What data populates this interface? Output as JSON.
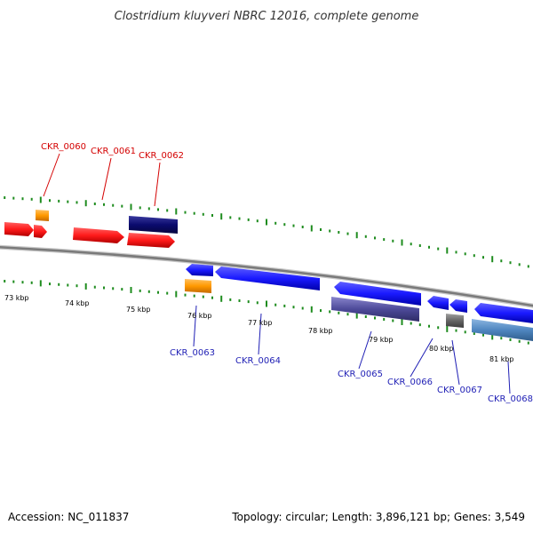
{
  "header": {
    "title": "Clostridium kluyveri NBRC 12016, complete genome"
  },
  "footer": {
    "accession": "Accession: NC_011837",
    "topology": "Topology: circular; Length: 3,896,121 bp; Genes: 3,549"
  },
  "colors": {
    "forward_gene": "#ff1a1a",
    "reverse_gene": "#1a1aff",
    "forward_label": "#d40000",
    "reverse_label": "#1f1fb5",
    "backbone": "#8c8c8c",
    "tick_green": "#1e8c1e",
    "orange": "#ff9900",
    "navy": "#0b0b6e",
    "purple": "#4d4a99",
    "steelblue": "#4f86c0",
    "gray": "#666666"
  },
  "scale_labels": [
    {
      "text": "73 kbp"
    },
    {
      "text": "74 kbp"
    },
    {
      "text": "75 kbp"
    },
    {
      "text": "76 kbp"
    },
    {
      "text": "77 kbp"
    },
    {
      "text": "78 kbp"
    },
    {
      "text": "79 kbp"
    },
    {
      "text": "80 kbp"
    },
    {
      "text": "81 kbp"
    }
  ],
  "gene_labels": [
    {
      "text": "CKR_0060",
      "strand": "forward"
    },
    {
      "text": "CKR_0061",
      "strand": "forward"
    },
    {
      "text": "CKR_0062",
      "strand": "forward"
    },
    {
      "text": "CKR_0063",
      "strand": "reverse"
    },
    {
      "text": "CKR_0064",
      "strand": "reverse"
    },
    {
      "text": "CKR_0065",
      "strand": "reverse"
    },
    {
      "text": "CKR_0066",
      "strand": "reverse"
    },
    {
      "text": "CKR_0067",
      "strand": "reverse"
    },
    {
      "text": "CKR_0068",
      "strand": "reverse"
    }
  ]
}
